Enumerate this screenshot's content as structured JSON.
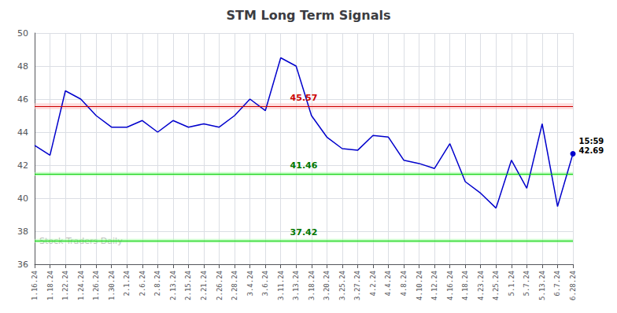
{
  "chart_data": {
    "type": "line",
    "title": "STM Long Term Signals",
    "categories": [
      "1.16.24",
      "1.18.24",
      "1.22.24",
      "1.24.24",
      "1.26.24",
      "1.30.24",
      "2.1.24",
      "2.6.24",
      "2.8.24",
      "2.13.24",
      "2.15.24",
      "2.21.24",
      "2.26.24",
      "2.28.24",
      "3.4.24",
      "3.6.24",
      "3.11.24",
      "3.13.24",
      "3.18.24",
      "3.20.24",
      "3.25.24",
      "3.27.24",
      "4.2.24",
      "4.4.24",
      "4.8.24",
      "4.10.24",
      "4.12.24",
      "4.16.24",
      "4.18.24",
      "4.23.24",
      "4.25.24",
      "5.1.24",
      "5.7.24",
      "5.13.24",
      "6.7.24",
      "6.28.24"
    ],
    "values": [
      43.2,
      42.6,
      46.5,
      46.0,
      45.0,
      44.3,
      44.3,
      44.7,
      44.0,
      44.7,
      44.3,
      44.5,
      44.3,
      45.0,
      46.0,
      45.3,
      48.5,
      48.0,
      45.0,
      43.7,
      43.0,
      42.9,
      43.8,
      43.7,
      42.3,
      42.1,
      41.8,
      43.3,
      41.0,
      40.3,
      39.4,
      42.3,
      40.6,
      44.5,
      39.5,
      42.69
    ],
    "color": "#0000cc",
    "ylim": [
      36,
      50
    ],
    "yticks": [
      36,
      38,
      40,
      42,
      44,
      46,
      48,
      50
    ],
    "grid": true,
    "reference_lines": [
      {
        "value": 45.57,
        "label": "45.57",
        "color": "#cc0000",
        "label_color": "#cc0000",
        "band_half_width": 0.18,
        "band_color": "#ffbbbb"
      },
      {
        "value": 41.46,
        "label": "41.46",
        "color": "#00cc00",
        "label_color": "#007700",
        "band_half_width": 0.12,
        "band_color": "#99ff99"
      },
      {
        "value": 37.42,
        "label": "37.42",
        "color": "#00cc00",
        "label_color": "#007700",
        "band_half_width": 0.12,
        "band_color": "#99ff99"
      }
    ],
    "end_label": [
      "15:59",
      "42.69"
    ],
    "watermark": "Stock Traders Daily"
  }
}
